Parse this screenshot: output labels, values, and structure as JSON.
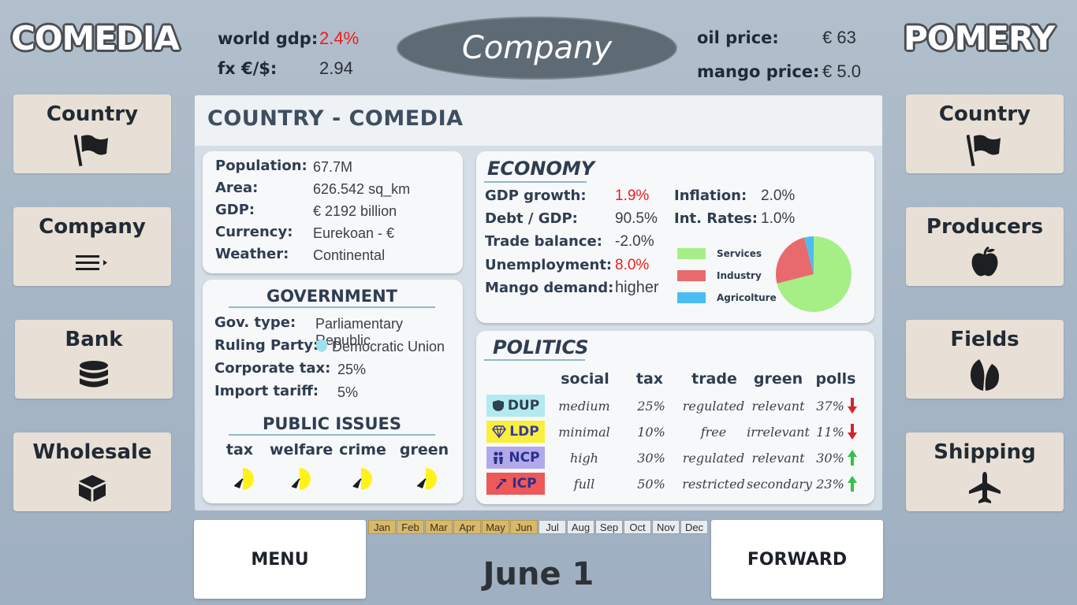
{
  "left_country": "COMEDIA",
  "right_country": "POMERY",
  "top": {
    "world_gdp_label": "world gdp:",
    "world_gdp_value": "2.4%",
    "fx_label": "fx  €/$:",
    "fx_value": "2.94",
    "center_title": "Company",
    "oil_label": "oil price:",
    "oil_value": "€ 63",
    "mango_label": "mango price:",
    "mango_value": "€ 5.0"
  },
  "left_nav": [
    {
      "label": "Country",
      "icon": "flag-icon"
    },
    {
      "label": "Company",
      "icon": "menu-list-icon"
    },
    {
      "label": "Bank",
      "icon": "coins-stack-icon"
    },
    {
      "label": "Wholesale",
      "icon": "box-icon"
    }
  ],
  "right_nav": [
    {
      "label": "Country",
      "icon": "flag-icon"
    },
    {
      "label": "Producers",
      "icon": "apple-icon"
    },
    {
      "label": "Fields",
      "icon": "leaves-icon"
    },
    {
      "label": "Shipping",
      "icon": "airplane-icon"
    }
  ],
  "panel": {
    "title": "COUNTRY - COMEDIA",
    "info": [
      {
        "label": "Population:",
        "value": "67.7M"
      },
      {
        "label": "Area:",
        "value": "626.542 sq_km"
      },
      {
        "label": "GDP:",
        "value": "€ 2192 billion"
      },
      {
        "label": "Currency:",
        "value": "Eurekoan - €"
      },
      {
        "label": "Weather:",
        "value": "Continental"
      }
    ],
    "government": {
      "title": "GOVERNMENT",
      "rows": [
        {
          "label": "Gov. type:",
          "value": "Parliamentary Republic"
        },
        {
          "label": "Ruling Party:",
          "value": "Democratic Union"
        },
        {
          "label": "Corporate tax:",
          "value": "25%"
        },
        {
          "label": "Import tariff:",
          "value": "5%"
        }
      ],
      "issues_title": "PUBLIC ISSUES",
      "issues": [
        {
          "label": "tax",
          "level": 0.45
        },
        {
          "label": "welfare",
          "level": 0.4
        },
        {
          "label": "crime",
          "level": 0.42
        },
        {
          "label": "green",
          "level": 0.45
        }
      ]
    },
    "economy": {
      "title": "ECONOMY",
      "left": [
        {
          "label": "GDP growth:",
          "value": "1.9%",
          "red": true
        },
        {
          "label": "Debt / GDP:",
          "value": "90.5%",
          "red": false
        },
        {
          "label": "Trade balance:",
          "value": "-2.0%",
          "red": false
        },
        {
          "label": "Unemployment:",
          "value": "8.0%",
          "red": true
        },
        {
          "label": "Mango demand:",
          "value": "higher",
          "red": false
        }
      ],
      "right": [
        {
          "label": "Inflation:",
          "value": "2.0%"
        },
        {
          "label": "Int. Rates:",
          "value": "1.0%"
        }
      ],
      "legend": [
        {
          "label": "Services",
          "color": "#a6ef86"
        },
        {
          "label": "Industry",
          "color": "#e86a6e"
        },
        {
          "label": "Agricolture",
          "color": "#4cbdf2"
        }
      ]
    },
    "politics": {
      "title": "POLITICS",
      "headers": [
        "social",
        "tax",
        "trade",
        "green",
        "polls"
      ],
      "parties": [
        {
          "name": "DUP",
          "color": "#b3e9f1",
          "text": "#2d4150",
          "icon": "shield-icon",
          "social": "medium",
          "tax": "25%",
          "trade": "regulated",
          "green": "relevant",
          "polls": "37%",
          "trend": "down"
        },
        {
          "name": "LDP",
          "color": "#fbef3d",
          "text": "#3a3aa0",
          "icon": "diamond-icon",
          "social": "minimal",
          "tax": "10%",
          "trade": "free",
          "green": "irrelevant",
          "polls": "11%",
          "trend": "down"
        },
        {
          "name": "NCP",
          "color": "#b2a9ea",
          "text": "#2a2f8a",
          "icon": "people-icon",
          "social": "high",
          "tax": "30%",
          "trade": "regulated",
          "green": "relevant",
          "polls": "30%",
          "trend": "up"
        },
        {
          "name": "ICP",
          "color": "#ed5858",
          "text": "#2a2f8a",
          "icon": "hammer-icon",
          "social": "full",
          "tax": "50%",
          "trade": "restricted",
          "green": "secondary",
          "polls": "23%",
          "trend": "up"
        }
      ]
    }
  },
  "chart_data": {
    "type": "pie",
    "categories": [
      "Services",
      "Industry",
      "Agricolture"
    ],
    "values": [
      71,
      25,
      4
    ],
    "colors": [
      "#a6ef86",
      "#e86a6e",
      "#4cbdf2"
    ]
  },
  "bottom": {
    "menu_label": "MENU",
    "forward_label": "FORWARD",
    "date": "June 1",
    "months": [
      "Jan",
      "Feb",
      "Mar",
      "Apr",
      "May",
      "Jun",
      "Jul",
      "Aug",
      "Sep",
      "Oct",
      "Nov",
      "Dec"
    ],
    "past_months": 6
  }
}
